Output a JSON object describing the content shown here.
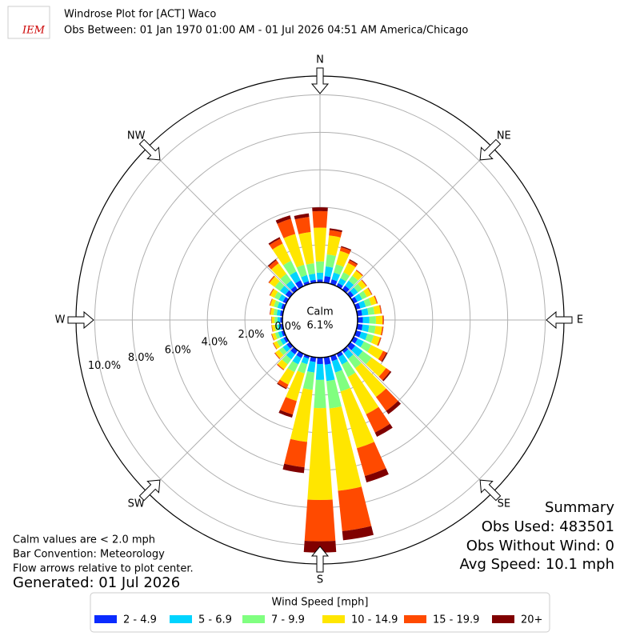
{
  "logo": "IEM",
  "chart_data": {
    "type": "windrose",
    "title": "Windrose Plot for [ACT] Waco",
    "subtitle": "Obs Between: 01 Jan 1970 01:00 AM - 01 Jul 2026 04:51 AM America/Chicago",
    "directions": [
      "N",
      "NE",
      "E",
      "SE",
      "S",
      "SW",
      "W",
      "NW"
    ],
    "calm_label": "Calm",
    "calm_value": 6.1,
    "calm_value_label": "6.1%",
    "ylim": [
      0,
      11
    ],
    "yticks": [
      {
        "value": 0,
        "label": "0.0%"
      },
      {
        "value": 2,
        "label": "2.0%"
      },
      {
        "value": 4,
        "label": "4.0%"
      },
      {
        "value": 6,
        "label": "6.0%"
      },
      {
        "value": 8,
        "label": "8.0%"
      },
      {
        "value": 10,
        "label": "10.0%"
      }
    ],
    "grid": true,
    "legend_title": "Wind Speed [mph]",
    "legend_position": "bottom",
    "series": [
      {
        "name": "2 - 4.9",
        "color": "#0a2bff",
        "values": [
          0.16,
          0.35,
          0.25,
          0.19,
          0.26,
          0.22,
          0.22,
          0.24,
          0.26,
          0.28,
          0.28,
          0.28,
          0.24,
          0.32,
          0.17,
          0.2,
          0.28,
          0.39,
          0.34,
          0.25,
          0.14,
          0.25,
          0.26,
          0.2,
          0.16,
          0.14,
          0.12,
          0.12,
          0.14,
          0.16,
          0.2,
          0.28,
          0.24,
          0.35,
          0.15,
          0.15
        ]
      },
      {
        "name": "5 - 6.9",
        "color": "#00d4ff",
        "values": [
          0.36,
          0.52,
          0.38,
          0.29,
          0.33,
          0.28,
          0.28,
          0.3,
          0.33,
          0.35,
          0.35,
          0.35,
          0.36,
          0.49,
          0.38,
          0.44,
          0.63,
          0.88,
          0.85,
          0.56,
          0.31,
          0.38,
          0.33,
          0.25,
          0.2,
          0.18,
          0.15,
          0.15,
          0.18,
          0.2,
          0.25,
          0.35,
          0.36,
          0.52,
          0.34,
          0.33
        ]
      },
      {
        "name": "7 - 9.9",
        "color": "#80ff80",
        "values": [
          0.6,
          0.64,
          0.46,
          0.35,
          0.33,
          0.28,
          0.28,
          0.3,
          0.33,
          0.35,
          0.35,
          0.35,
          0.44,
          0.59,
          0.63,
          0.74,
          1.05,
          1.47,
          1.5,
          0.93,
          0.51,
          0.46,
          0.33,
          0.25,
          0.2,
          0.17,
          0.15,
          0.15,
          0.17,
          0.2,
          0.25,
          0.35,
          0.44,
          0.64,
          0.57,
          0.56
        ]
      },
      {
        "name": "10 - 14.9",
        "color": "#ffe600",
        "values": [
          1.8,
          1.02,
          0.74,
          0.56,
          0.33,
          0.27,
          0.27,
          0.3,
          0.33,
          0.35,
          0.35,
          0.35,
          0.7,
          0.95,
          1.89,
          2.21,
          3.15,
          4.41,
          4.9,
          2.79,
          1.53,
          0.74,
          0.33,
          0.25,
          0.2,
          0.17,
          0.15,
          0.15,
          0.17,
          0.2,
          0.25,
          0.35,
          0.7,
          1.02,
          1.71,
          1.67
        ]
      },
      {
        "name": "15 - 19.9",
        "color": "#ff4a00",
        "values": [
          0.88,
          0.29,
          0.21,
          0.16,
          0.05,
          0.04,
          0.04,
          0.05,
          0.05,
          0.06,
          0.06,
          0.06,
          0.2,
          0.27,
          0.92,
          1.08,
          1.54,
          2.16,
          2.2,
          1.36,
          0.75,
          0.21,
          0.05,
          0.04,
          0.03,
          0.03,
          0.02,
          0.02,
          0.03,
          0.03,
          0.04,
          0.06,
          0.2,
          0.29,
          0.84,
          0.81
        ]
      },
      {
        "name": "20+",
        "color": "#800000",
        "values": [
          0.2,
          0.09,
          0.06,
          0.05,
          0.01,
          0.01,
          0.01,
          0.01,
          0.01,
          0.01,
          0.01,
          0.01,
          0.06,
          0.08,
          0.21,
          0.25,
          0.35,
          0.49,
          0.6,
          0.31,
          0.17,
          0.06,
          0.01,
          0.01,
          0.01,
          0.01,
          0.01,
          0.01,
          0.01,
          0.01,
          0.01,
          0.01,
          0.06,
          0.09,
          0.19,
          0.19
        ]
      }
    ]
  },
  "notes": [
    "Calm values are < 2.0 mph",
    "Bar Convention: Meteorology",
    "Flow arrows relative to plot center."
  ],
  "generated": "Generated: 01 Jul 2026",
  "summary": [
    "Summary",
    "Obs Used: 483501",
    "Obs Without Wind: 0",
    "Avg Speed: 10.1 mph"
  ]
}
